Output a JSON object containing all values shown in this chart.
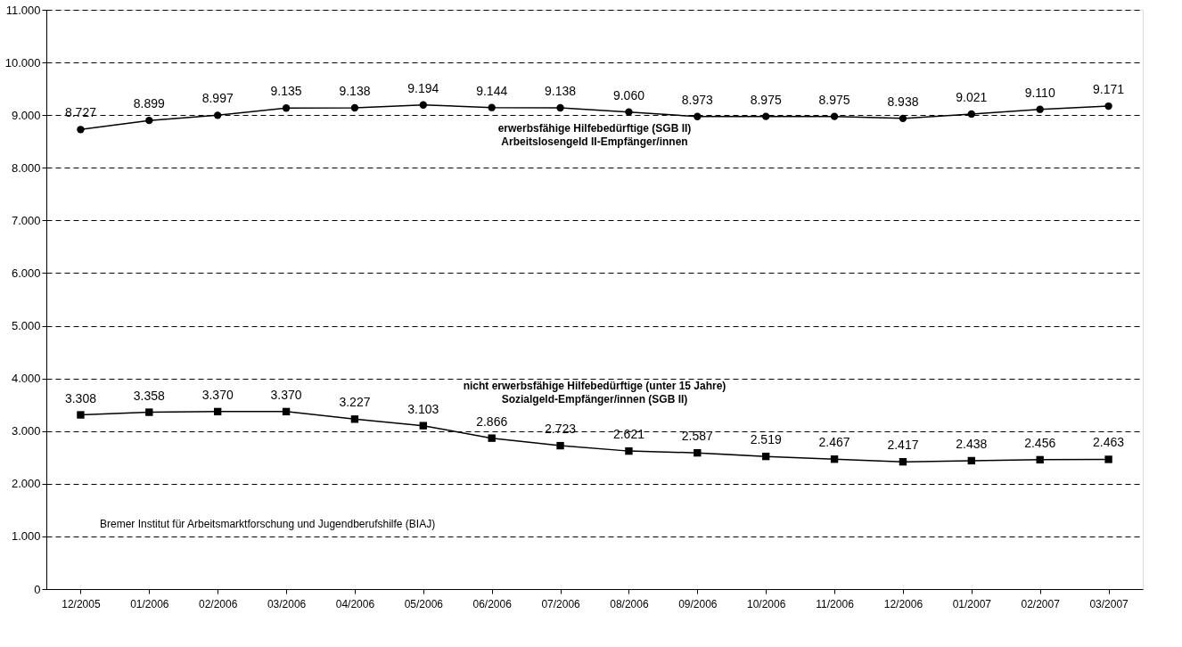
{
  "chart_data": {
    "type": "line",
    "categories": [
      "12/2005",
      "01/2006",
      "02/2006",
      "03/2006",
      "04/2006",
      "05/2006",
      "06/2006",
      "07/2006",
      "08/2006",
      "09/2006",
      "10/2006",
      "11/2006",
      "12/2006",
      "01/2007",
      "02/2007",
      "03/2007"
    ],
    "series": [
      {
        "name": "erwerbsfähige Hilfebedürftige (SGB II)\nArbeitslosengeld II-Empfänger/innen",
        "color": "#000000",
        "marker": "circle",
        "values": [
          8727,
          8899,
          8997,
          9135,
          9138,
          9194,
          9144,
          9138,
          9060,
          8973,
          8975,
          8975,
          8938,
          9021,
          9110,
          9171
        ],
        "value_labels": [
          "8.727",
          "8.899",
          "8.997",
          "9.135",
          "9.138",
          "9.194",
          "9.144",
          "9.138",
          "9.060",
          "8.973",
          "8.975",
          "8.975",
          "8.938",
          "9.021",
          "9.110",
          "9.171"
        ]
      },
      {
        "name": "nicht erwerbsfähige Hilfebedürftige (unter 15 Jahre)\nSozialgeld-Empfänger/innen (SGB II)",
        "color": "#000000",
        "marker": "square",
        "values": [
          3308,
          3358,
          3370,
          3370,
          3227,
          3103,
          2866,
          2723,
          2621,
          2587,
          2519,
          2467,
          2417,
          2438,
          2456,
          2463
        ],
        "value_labels": [
          "3.308",
          "3.358",
          "3.370",
          "3.370",
          "3.227",
          "3.103",
          "2.866",
          "2.723",
          "2.621",
          "2.587",
          "2.519",
          "2.467",
          "2.417",
          "2.438",
          "2.456",
          "2.463"
        ]
      }
    ],
    "ylim": [
      0,
      11000
    ],
    "yticks": [
      0,
      {
        "value": 1000,
        "label": "1.000"
      },
      {
        "value": 2000,
        "label": "2.000"
      },
      {
        "value": 3000,
        "label": "3.000"
      },
      {
        "value": 4000,
        "label": "4.000"
      },
      {
        "value": 5000,
        "label": "5.000"
      },
      {
        "value": 6000,
        "label": "6.000"
      },
      {
        "value": 7000,
        "label": "7.000"
      },
      {
        "value": 8000,
        "label": "8.000"
      },
      {
        "value": 9000,
        "label": "9.000"
      },
      {
        "value": 10000,
        "label": "10.000"
      },
      {
        "value": 11000,
        "label": "11.000"
      }
    ],
    "grid": "y",
    "legend": false,
    "line_style": "solid",
    "annotations": [
      "Bremer Institut für Arbeitsmarktforschung und Jugendberufshilfe (BIAJ)"
    ]
  }
}
